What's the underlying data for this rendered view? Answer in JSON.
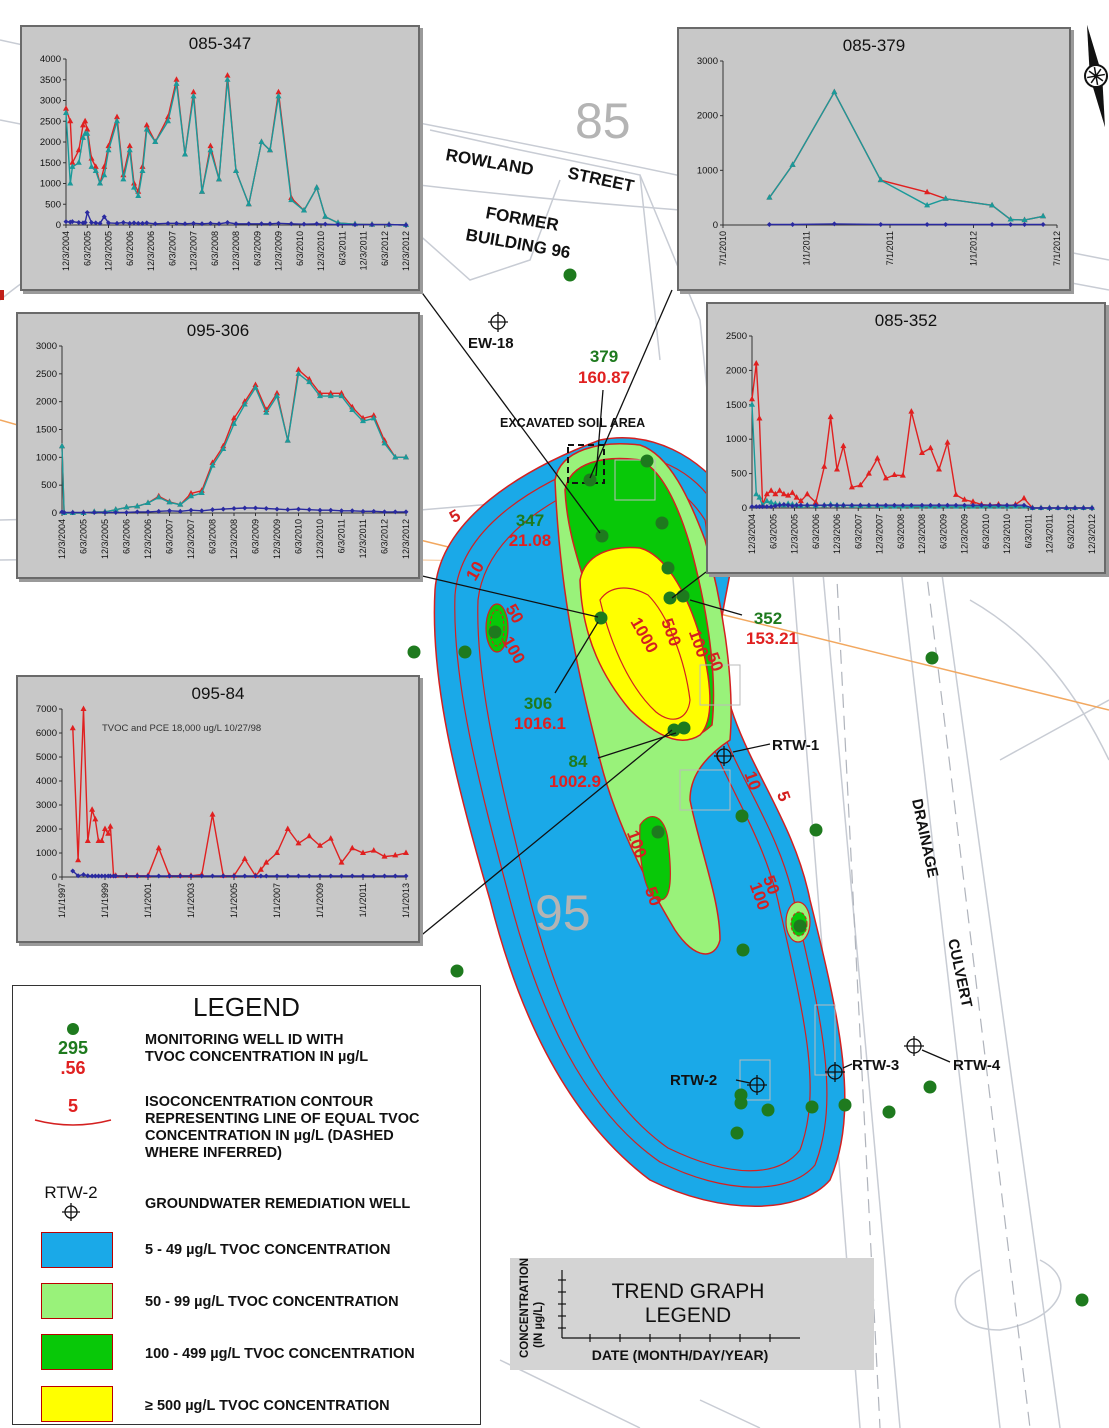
{
  "map": {
    "block_85": "85",
    "block_95": "95",
    "street_1": "ROWLAND",
    "street_2": "STREET",
    "former_bldg_1": "FORMER",
    "former_bldg_2": "BUILDING 96",
    "excavated": "EXCAVATED SOIL AREA",
    "drainage": "DRAINAGE",
    "culvert": "CULVERT",
    "colors": {
      "blue": "#1aa9e8",
      "lightgreen": "#99f27a",
      "green": "#08c808",
      "yellow": "#ffff00",
      "contour": "#d42020",
      "well": "#1e7a1e"
    }
  },
  "wells": [
    {
      "id": "379",
      "tvoc": "160.87"
    },
    {
      "id": "347",
      "tvoc": "21.08"
    },
    {
      "id": "352",
      "tvoc": "153.21"
    },
    {
      "id": "306",
      "tvoc": "1016.1"
    },
    {
      "id": "84",
      "tvoc": "1002.9"
    }
  ],
  "remediation_wells": [
    "EW-18",
    "RTW-1",
    "RTW-2",
    "RTW-3",
    "RTW-4"
  ],
  "contours": [
    "5",
    "10",
    "50",
    "100",
    "500",
    "1000"
  ],
  "chart_data": [
    {
      "type": "line",
      "title": "085-347",
      "y_ticks": [
        "0",
        "500",
        "1000",
        "1500",
        "2000",
        "2500",
        "3000",
        "3500",
        "4000"
      ],
      "ylim": [
        0,
        4000
      ],
      "x_ticks": [
        "12/3/2004",
        "6/3/2005",
        "12/3/2005",
        "6/3/2006",
        "12/3/2006",
        "6/3/2007",
        "12/3/2007",
        "6/3/2008",
        "12/3/2008",
        "6/3/2009",
        "12/3/2009",
        "6/3/2010",
        "12/3/2010",
        "6/3/2011",
        "12/3/2011",
        "6/3/2012",
        "12/3/2012"
      ],
      "x": [
        0,
        0.1,
        0.15,
        0.3,
        0.4,
        0.45,
        0.5,
        0.6,
        0.7,
        0.8,
        0.9,
        1.0,
        1.2,
        1.35,
        1.5,
        1.6,
        1.7,
        1.8,
        1.9,
        2.1,
        2.4,
        2.6,
        2.8,
        3.0,
        3.2,
        3.4,
        3.6,
        3.8,
        4.0,
        4.3,
        4.6,
        4.8,
        5.0,
        5.3,
        5.6,
        5.9,
        6.1,
        6.4,
        6.8,
        7.2,
        7.6,
        8.0
      ],
      "series": [
        {
          "color": "#e02020",
          "values": [
            2800,
            2500,
            1500,
            1800,
            2400,
            2500,
            2300,
            1600,
            1400,
            1000,
            1400,
            1900,
            2600,
            1200,
            1900,
            1000,
            800,
            1400,
            2400,
            2000,
            2600,
            3500,
            1700,
            3200,
            800,
            1900,
            1100,
            3600,
            1300,
            500,
            2000,
            1800,
            3200,
            650,
            350,
            900,
            200,
            50,
            20,
            10,
            10,
            0
          ]
        },
        {
          "color": "#1a9a9a",
          "values": [
            2700,
            1000,
            1400,
            1500,
            2100,
            2200,
            2200,
            1400,
            1300,
            1000,
            1200,
            1800,
            2500,
            1100,
            1800,
            900,
            700,
            1300,
            2300,
            2000,
            2500,
            3400,
            1700,
            3100,
            800,
            1800,
            1100,
            3500,
            1300,
            500,
            2000,
            1800,
            3100,
            600,
            350,
            900,
            200,
            50,
            20,
            10,
            10,
            0
          ]
        },
        {
          "color": "#2a2aa0",
          "values": [
            80,
            70,
            80,
            60,
            50,
            60,
            300,
            60,
            50,
            40,
            200,
            50,
            40,
            60,
            40,
            50,
            40,
            40,
            50,
            30,
            40,
            40,
            30,
            40,
            30,
            40,
            30,
            60,
            30,
            30,
            30,
            30,
            40,
            30,
            20,
            30,
            20,
            10,
            10,
            10,
            10,
            0
          ]
        }
      ]
    },
    {
      "type": "line",
      "title": "085-379",
      "y_ticks": [
        "0",
        "1000",
        "2000",
        "3000"
      ],
      "ylim": [
        0,
        3000
      ],
      "x_ticks": [
        "7/1/2010",
        "1/1/2011",
        "7/1/2011",
        "1/1/2012",
        "7/1/2012"
      ],
      "x": [
        0.5,
        0.75,
        1.2,
        1.7,
        2.2,
        2.4,
        2.9,
        3.1,
        3.25,
        3.45
      ],
      "series": [
        {
          "color": "#e02020",
          "values": [
            500,
            1100,
            2430,
            820,
            600,
            480,
            360,
            100,
            90,
            160
          ]
        },
        {
          "color": "#1a9a9a",
          "values": [
            500,
            1100,
            2430,
            820,
            360,
            480,
            360,
            100,
            90,
            160
          ]
        },
        {
          "color": "#2a2aa0",
          "values": [
            10,
            10,
            20,
            10,
            10,
            10,
            10,
            10,
            10,
            10
          ]
        }
      ]
    },
    {
      "type": "line",
      "title": "095-306",
      "y_ticks": [
        "0",
        "500",
        "1000",
        "1500",
        "2000",
        "2500",
        "3000"
      ],
      "ylim": [
        0,
        3000
      ],
      "x_ticks": [
        "12/3/2004",
        "6/3/2005",
        "12/3/2005",
        "6/3/2006",
        "12/3/2006",
        "6/3/2007",
        "12/3/2007",
        "6/3/2008",
        "12/3/2008",
        "6/3/2009",
        "12/3/2009",
        "6/3/2010",
        "12/3/2010",
        "6/3/2011",
        "12/3/2011",
        "6/3/2012",
        "12/3/2012"
      ],
      "x": [
        0,
        0.1,
        0.5,
        1.0,
        1.5,
        2.0,
        2.5,
        3.0,
        3.5,
        4.0,
        4.5,
        5.0,
        5.5,
        6.0,
        6.5,
        7.0,
        7.5,
        8.0,
        8.5,
        9.0,
        9.5,
        10.0,
        10.5,
        11.0,
        11.5,
        12.0,
        12.5,
        13.0,
        13.5,
        14.0,
        14.5,
        15.0,
        15.5,
        16.0
      ],
      "series": [
        {
          "color": "#e02020",
          "values": [
            1200,
            0,
            0,
            0,
            20,
            20,
            60,
            100,
            120,
            180,
            300,
            200,
            150,
            350,
            400,
            900,
            1200,
            1700,
            2000,
            2300,
            1850,
            2150,
            1300,
            2570,
            2400,
            2150,
            2150,
            2150,
            1900,
            1700,
            1750,
            1300,
            1000,
            1000
          ]
        },
        {
          "color": "#1a9a9a",
          "values": [
            1200,
            0,
            0,
            0,
            20,
            20,
            60,
            100,
            120,
            180,
            280,
            190,
            150,
            300,
            360,
            850,
            1150,
            1600,
            1950,
            2250,
            1800,
            2100,
            1300,
            2500,
            2350,
            2100,
            2100,
            2100,
            1850,
            1650,
            1700,
            1250,
            1000,
            1000
          ]
        },
        {
          "color": "#2a2aa0",
          "values": [
            20,
            10,
            10,
            10,
            10,
            10,
            10,
            10,
            20,
            20,
            30,
            40,
            30,
            50,
            40,
            60,
            70,
            80,
            90,
            90,
            80,
            70,
            60,
            70,
            60,
            50,
            50,
            40,
            40,
            30,
            30,
            20,
            20,
            20
          ]
        }
      ]
    },
    {
      "type": "line",
      "title": "085-352",
      "y_ticks": [
        "0",
        "500",
        "1000",
        "1500",
        "2000",
        "2500"
      ],
      "ylim": [
        0,
        2500
      ],
      "x_ticks": [
        "12/3/2004",
        "6/3/2005",
        "12/3/2005",
        "6/3/2006",
        "12/3/2006",
        "6/3/2007",
        "12/3/2007",
        "6/3/2008",
        "12/3/2008",
        "6/3/2009",
        "12/3/2009",
        "6/3/2010",
        "12/3/2010",
        "6/3/2011",
        "12/3/2011",
        "6/3/2012",
        "12/3/2012"
      ],
      "x": [
        0,
        0.2,
        0.35,
        0.5,
        0.7,
        0.9,
        1.1,
        1.3,
        1.5,
        1.7,
        1.9,
        2.1,
        2.3,
        2.6,
        3.0,
        3.4,
        3.7,
        4.0,
        4.3,
        4.7,
        5.1,
        5.5,
        5.9,
        6.3,
        6.7,
        7.1,
        7.5,
        8.0,
        8.4,
        8.8,
        9.2,
        9.6,
        10.0,
        10.4,
        10.8,
        11.2,
        11.6,
        12.0,
        12.4,
        12.8,
        13.2,
        13.6,
        14.0,
        14.4,
        14.8,
        15.2,
        15.6,
        16.0
      ],
      "series": [
        {
          "color": "#e02020",
          "values": [
            1580,
            2100,
            1300,
            50,
            200,
            250,
            200,
            250,
            200,
            180,
            220,
            150,
            100,
            200,
            80,
            600,
            1320,
            560,
            900,
            300,
            330,
            500,
            720,
            430,
            480,
            470,
            1400,
            800,
            870,
            560,
            950,
            190,
            120,
            90,
            50,
            40,
            50,
            30,
            50,
            140,
            0,
            0,
            0,
            0,
            0,
            0,
            0,
            0
          ]
        },
        {
          "color": "#1a9a9a",
          "values": [
            1500,
            200,
            150,
            40,
            100,
            80,
            60,
            50,
            40,
            60,
            50,
            40,
            30,
            40,
            30,
            40,
            50,
            40,
            40,
            30,
            30,
            30,
            30,
            20,
            20,
            20,
            20,
            20,
            20,
            20,
            20,
            20,
            20,
            20,
            20,
            20,
            20,
            20,
            20,
            20,
            0,
            0,
            0,
            0,
            0,
            0,
            0,
            0
          ]
        },
        {
          "color": "#2a2aa0",
          "values": [
            20,
            20,
            20,
            20,
            20,
            20,
            30,
            40,
            50,
            40,
            30,
            40,
            40,
            40,
            40,
            40,
            40,
            40,
            40,
            40,
            40,
            40,
            40,
            40,
            40,
            40,
            40,
            40,
            40,
            40,
            40,
            40,
            40,
            40,
            40,
            40,
            40,
            40,
            40,
            40,
            0,
            0,
            0,
            0,
            0,
            0,
            0,
            0
          ]
        }
      ]
    },
    {
      "type": "line",
      "title": "095-84",
      "annotation": "TVOC and PCE 18,000 ug/L 10/27/98",
      "y_ticks": [
        "0",
        "1000",
        "2000",
        "3000",
        "4000",
        "5000",
        "6000",
        "7000"
      ],
      "ylim": [
        0,
        7000
      ],
      "x_ticks": [
        "1/1/1997",
        "1/1/1999",
        "1/1/2001",
        "1/1/2003",
        "1/1/2005",
        "1/1/2007",
        "1/1/2009",
        "1/1/2011",
        "1/1/2013"
      ],
      "x": [
        1.0,
        1.5,
        2.0,
        2.4,
        2.8,
        3.1,
        3.4,
        3.7,
        4.0,
        4.3,
        4.5,
        4.8,
        5.0,
        6,
        7,
        8,
        9,
        10,
        11,
        12,
        13,
        14,
        15,
        16,
        17,
        18,
        18.5,
        19,
        20,
        21,
        22,
        23,
        24,
        25,
        26,
        27,
        28,
        29,
        30,
        31,
        32
      ],
      "series": [
        {
          "color": "#e02020",
          "values": [
            6200,
            700,
            7000,
            1500,
            2800,
            2400,
            1500,
            1500,
            2000,
            1800,
            2100,
            50,
            50,
            50,
            50,
            50,
            1200,
            50,
            50,
            50,
            100,
            2600,
            50,
            50,
            750,
            50,
            300,
            600,
            1000,
            2000,
            1400,
            1700,
            1300,
            1600,
            600,
            1200,
            1000,
            1100,
            850,
            900,
            1000
          ]
        },
        {
          "color": "#2a2aa0",
          "values": [
            250,
            50,
            100,
            50,
            40,
            40,
            40,
            40,
            40,
            40,
            40,
            40,
            40,
            40,
            40,
            40,
            40,
            40,
            40,
            40,
            40,
            40,
            40,
            40,
            40,
            40,
            40,
            40,
            40,
            40,
            40,
            40,
            40,
            40,
            40,
            40,
            40,
            40,
            40,
            40,
            40
          ]
        }
      ]
    }
  ],
  "legend": {
    "title": "LEGEND",
    "sample_well_id": "295",
    "sample_well_val": ".56",
    "well_desc": [
      "MONITORING WELL ID WITH",
      "TVOC CONCENTRATION IN µg/L"
    ],
    "contour_sample": "5",
    "contour_desc": [
      "ISOCONCENTRATION CONTOUR",
      "REPRESENTING LINE OF EQUAL TVOC",
      "CONCENTRATION IN µg/L (DASHED",
      "WHERE INFERRED)"
    ],
    "rtw_sample": "RTW-2",
    "rtw_desc": "GROUNDWATER REMEDIATION WELL",
    "range_1": "5 - 49 µg/L TVOC CONCENTRATION",
    "range_2": "50 - 99 µg/L TVOC CONCENTRATION",
    "range_3": "100 - 499 µg/L TVOC CONCENTRATION",
    "range_4": "≥ 500 µg/L TVOC CONCENTRATION"
  },
  "trend_legend": {
    "title_1": "TREND GRAPH",
    "title_2": "LEGEND",
    "ylabel_1": "CONCENTRATION",
    "ylabel_2": "(IN µg/L)",
    "xlabel": "DATE (MONTH/DAY/YEAR)"
  }
}
